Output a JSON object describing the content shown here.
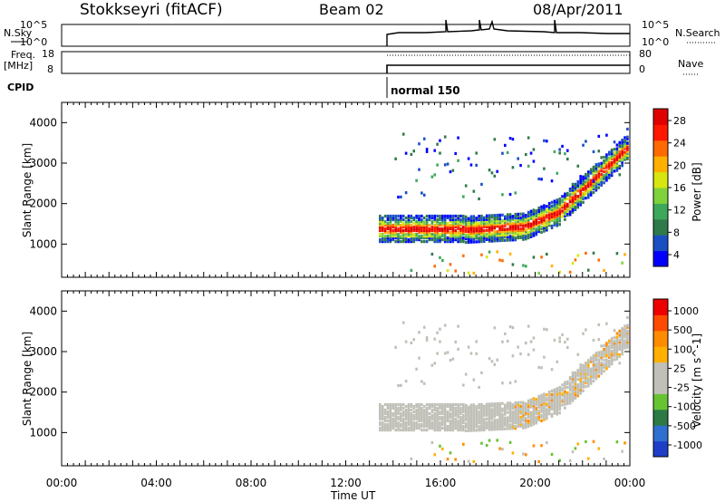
{
  "header": {
    "station": "Stokkseyri (fitACF)",
    "beam": "Beam 02",
    "date": "08/Apr/2011"
  },
  "aux_panels": {
    "nsky_label": "N.Sky",
    "nsearch_label": "N.Search",
    "noise_ticks": [
      "10^5",
      "10^0"
    ],
    "freq_label": "Freq.",
    "freq_unit": "[MHz]",
    "freq_ticks": [
      "18",
      "8"
    ],
    "nave_label": "Nave",
    "nave_ticks": [
      "80",
      "0"
    ],
    "cpid_label": "CPID",
    "cpid_value": "normal 150"
  },
  "chart_data": [
    {
      "type": "heatmap",
      "title": "",
      "xlabel": "",
      "ylabel": "Slant Range [km]",
      "x_range_hours": [
        0,
        24
      ],
      "ylim": [
        180,
        4500
      ],
      "y_ticks": [
        1000,
        2000,
        3000,
        4000
      ],
      "colorbar": {
        "label": "Power [dB]",
        "ticks": [
          "28",
          "24",
          "20",
          "16",
          "12",
          "8",
          "4"
        ],
        "colors": [
          "#0000ff",
          "#1a4fc4",
          "#2f7a4a",
          "#3ea85a",
          "#7fd23c",
          "#d8e60f",
          "#ffb000",
          "#ff6a00",
          "#ff1800",
          "#e00000"
        ]
      },
      "data_start_hour": 13.4,
      "features": [
        {
          "name": "main band",
          "range_km": [
            1200,
            1600
          ],
          "peak_db": 28
        }
      ]
    },
    {
      "type": "heatmap",
      "title": "",
      "xlabel": "Time UT",
      "ylabel": "Slant Range [km]",
      "x_range_hours": [
        0,
        24
      ],
      "ylim": [
        180,
        4500
      ],
      "y_ticks": [
        1000,
        2000,
        3000,
        4000
      ],
      "colorbar": {
        "label": "Velocity [m s^-1]",
        "ticks": [
          "1000",
          "500",
          "100",
          "25",
          "-25",
          "-100",
          "-500",
          "-1000"
        ],
        "colors": [
          "#1e3ec8",
          "#2f6fd0",
          "#2d7a45",
          "#66c433",
          "#c0c0b8",
          "#c0c0b8",
          "#ffb000",
          "#ff8c00",
          "#ff4a00",
          "#ee0000"
        ]
      },
      "data_start_hour": 13.4
    }
  ],
  "x_ticks": [
    "00:00",
    "04:00",
    "08:00",
    "12:00",
    "16:00",
    "20:00",
    "00:00"
  ]
}
